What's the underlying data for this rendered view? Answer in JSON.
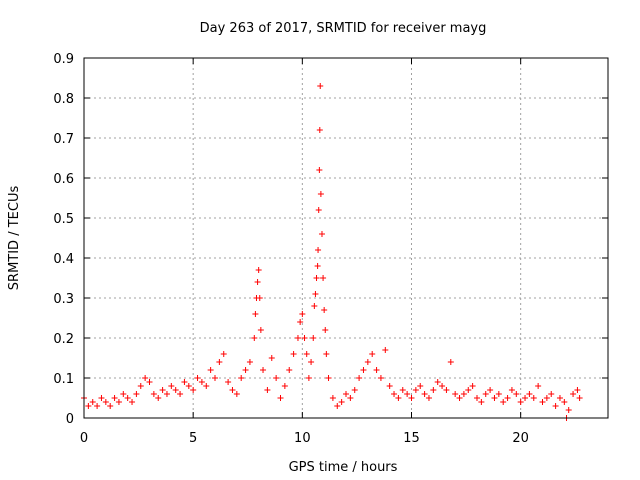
{
  "chart_data": {
    "type": "scatter",
    "title": "Day 263 of 2017, SRMTID for receiver mayg",
    "xlabel": "GPS time / hours",
    "ylabel": "SRMTID / TECUs",
    "xlim": [
      0,
      24
    ],
    "ylim": [
      0,
      0.9
    ],
    "xticks": [
      0,
      5,
      10,
      15,
      20
    ],
    "xtick_labels": [
      "0",
      "5",
      "10",
      "15",
      "20"
    ],
    "yticks": [
      0,
      0.1,
      0.2,
      0.3,
      0.4,
      0.5,
      0.6,
      0.7,
      0.8,
      0.9
    ],
    "ytick_labels": [
      "0",
      "0.1",
      "0.2",
      "0.3",
      "0.4",
      "0.5",
      "0.6",
      "0.7",
      "0.8",
      "0.9"
    ],
    "grid": true,
    "marker": "plus",
    "color": "#ff0000",
    "series": [
      {
        "name": "SRMTID",
        "x": [
          0.0,
          0.2,
          0.4,
          0.6,
          0.8,
          1.0,
          1.2,
          1.4,
          1.6,
          1.8,
          2.0,
          2.2,
          2.4,
          2.6,
          2.8,
          3.0,
          3.2,
          3.4,
          3.6,
          3.8,
          4.0,
          4.2,
          4.4,
          4.6,
          4.8,
          5.0,
          5.2,
          5.4,
          5.6,
          5.8,
          6.0,
          6.2,
          6.4,
          6.6,
          6.8,
          7.0,
          7.2,
          7.4,
          7.6,
          7.8,
          7.85,
          7.9,
          7.95,
          8.0,
          8.05,
          8.1,
          8.2,
          8.4,
          8.6,
          8.8,
          9.0,
          9.2,
          9.4,
          9.6,
          9.8,
          9.9,
          10.0,
          10.1,
          10.2,
          10.3,
          10.4,
          10.5,
          10.55,
          10.6,
          10.65,
          10.7,
          10.72,
          10.75,
          10.78,
          10.8,
          10.82,
          10.85,
          10.9,
          10.95,
          11.0,
          11.05,
          11.1,
          11.2,
          11.4,
          11.6,
          11.8,
          12.0,
          12.2,
          12.4,
          12.6,
          12.8,
          13.0,
          13.2,
          13.4,
          13.6,
          13.8,
          14.0,
          14.2,
          14.4,
          14.6,
          14.8,
          15.0,
          15.2,
          15.4,
          15.6,
          15.8,
          16.0,
          16.2,
          16.4,
          16.6,
          16.8,
          17.0,
          17.2,
          17.4,
          17.6,
          17.8,
          18.0,
          18.2,
          18.4,
          18.6,
          18.8,
          19.0,
          19.2,
          19.4,
          19.6,
          19.8,
          20.0,
          20.2,
          20.4,
          20.6,
          20.8,
          21.0,
          21.2,
          21.4,
          21.6,
          21.8,
          22.0,
          22.1,
          22.2,
          22.4,
          22.6,
          22.7
        ],
        "y": [
          0.05,
          0.03,
          0.04,
          0.03,
          0.05,
          0.04,
          0.03,
          0.05,
          0.04,
          0.06,
          0.05,
          0.04,
          0.06,
          0.08,
          0.1,
          0.09,
          0.06,
          0.05,
          0.07,
          0.06,
          0.08,
          0.07,
          0.06,
          0.09,
          0.08,
          0.07,
          0.1,
          0.09,
          0.08,
          0.12,
          0.1,
          0.14,
          0.16,
          0.09,
          0.07,
          0.06,
          0.1,
          0.12,
          0.14,
          0.2,
          0.26,
          0.3,
          0.34,
          0.37,
          0.3,
          0.22,
          0.12,
          0.07,
          0.15,
          0.1,
          0.05,
          0.08,
          0.12,
          0.16,
          0.2,
          0.24,
          0.26,
          0.2,
          0.16,
          0.1,
          0.14,
          0.2,
          0.28,
          0.31,
          0.35,
          0.38,
          0.42,
          0.52,
          0.62,
          0.72,
          0.83,
          0.56,
          0.46,
          0.35,
          0.27,
          0.22,
          0.16,
          0.1,
          0.05,
          0.03,
          0.04,
          0.06,
          0.05,
          0.07,
          0.1,
          0.12,
          0.14,
          0.16,
          0.12,
          0.1,
          0.17,
          0.08,
          0.06,
          0.05,
          0.07,
          0.06,
          0.05,
          0.07,
          0.08,
          0.06,
          0.05,
          0.07,
          0.09,
          0.08,
          0.07,
          0.14,
          0.06,
          0.05,
          0.06,
          0.07,
          0.08,
          0.05,
          0.04,
          0.06,
          0.07,
          0.05,
          0.06,
          0.04,
          0.05,
          0.07,
          0.06,
          0.04,
          0.05,
          0.06,
          0.05,
          0.08,
          0.04,
          0.05,
          0.06,
          0.03,
          0.05,
          0.04,
          0.0,
          0.02,
          0.06,
          0.07,
          0.05
        ]
      }
    ]
  }
}
